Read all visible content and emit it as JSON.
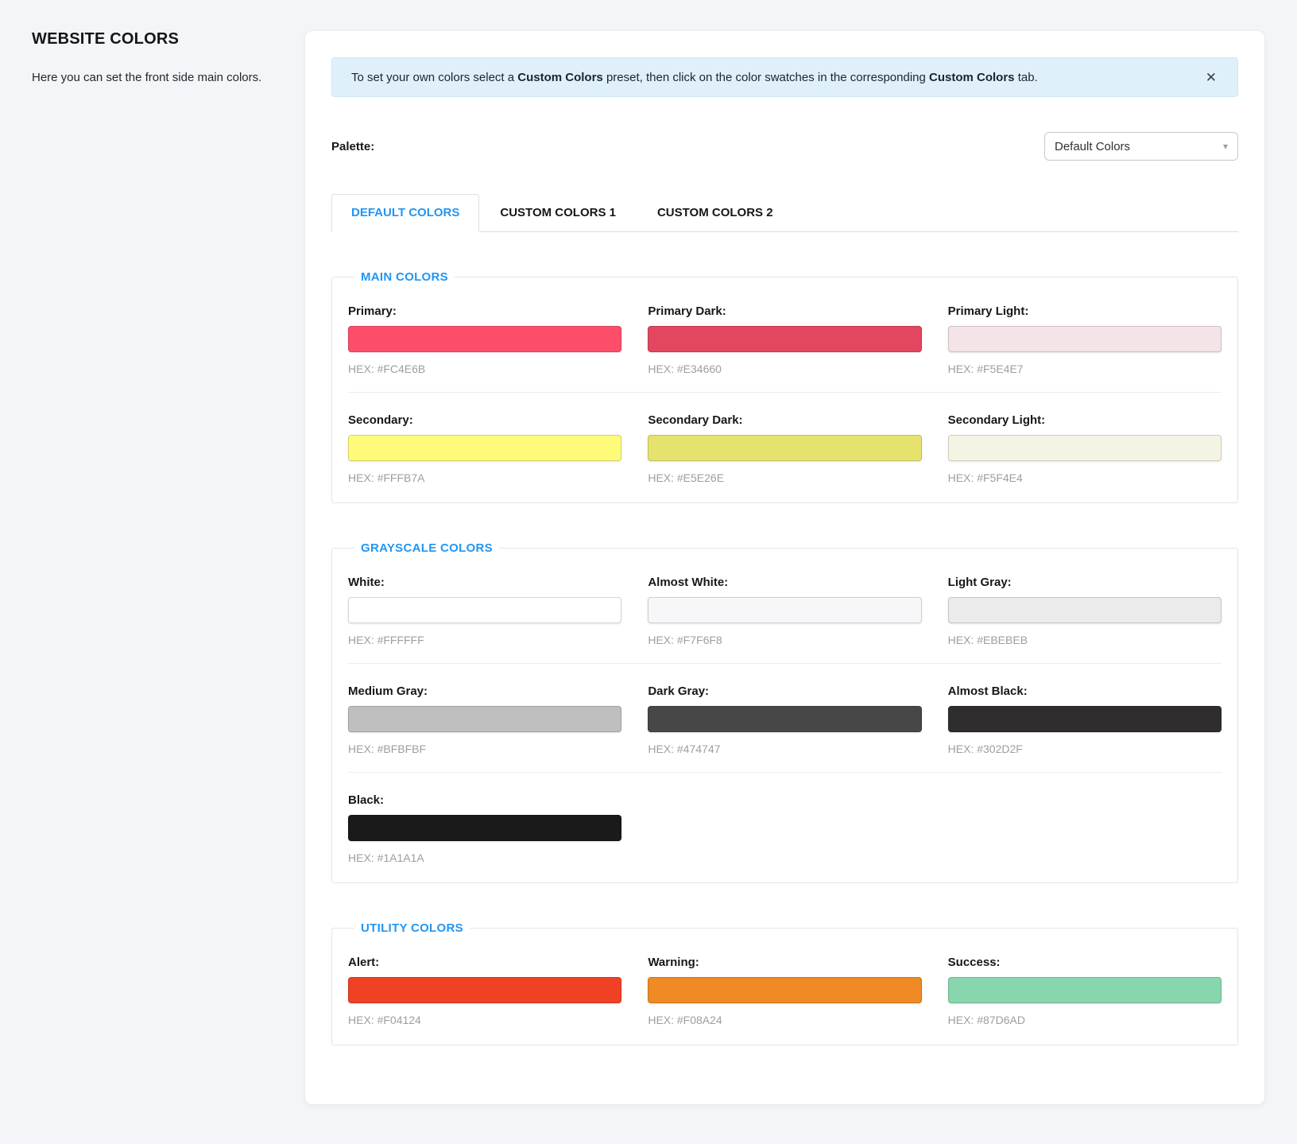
{
  "colors": {
    "accent": "#2196F3",
    "alert_bg": "#DFF0FA",
    "page_bg": "#F4F5F8"
  },
  "sidebar": {
    "title": "WEBSITE COLORS",
    "subtitle": "Here you can set the front side main colors."
  },
  "alert": {
    "part1": "To set your own colors select a ",
    "bold1": "Custom Colors",
    "part2": " preset, then click on the color swatches in the corresponding ",
    "bold2": "Custom Colors",
    "part3": " tab.",
    "close_icon": "✕"
  },
  "palette": {
    "label": "Palette:",
    "selected": "Default Colors",
    "caret": "▾"
  },
  "tabs": [
    {
      "label": "DEFAULT COLORS",
      "active": true
    },
    {
      "label": "CUSTOM COLORS 1",
      "active": false
    },
    {
      "label": "CUSTOM COLORS 2",
      "active": false
    }
  ],
  "sections": [
    {
      "title": "MAIN COLORS",
      "rows": [
        {
          "cells": [
            {
              "label": "Primary:",
              "color": "#FC4E6B",
              "hex_text": "HEX: #FC4E6B"
            },
            {
              "label": "Primary Dark:",
              "color": "#E34660",
              "hex_text": "HEX: #E34660"
            },
            {
              "label": "Primary Light:",
              "color": "#F5E4E7",
              "hex_text": "HEX: #F5E4E7"
            }
          ]
        },
        {
          "cells": [
            {
              "label": "Secondary:",
              "color": "#FFFB7A",
              "hex_text": "HEX: #FFFB7A"
            },
            {
              "label": "Secondary Dark:",
              "color": "#E5E26E",
              "hex_text": "HEX: #E5E26E"
            },
            {
              "label": "Secondary Light:",
              "color": "#F5F4E4",
              "hex_text": "HEX: #F5F4E4"
            }
          ]
        }
      ]
    },
    {
      "title": "GRAYSCALE COLORS",
      "rows": [
        {
          "cells": [
            {
              "label": "White:",
              "color": "#FFFFFF",
              "hex_text": "HEX: #FFFFFF"
            },
            {
              "label": "Almost White:",
              "color": "#F7F6F8",
              "hex_text": "HEX: #F7F6F8"
            },
            {
              "label": "Light Gray:",
              "color": "#EBEBEB",
              "hex_text": "HEX: #EBEBEB"
            }
          ]
        },
        {
          "cells": [
            {
              "label": "Medium Gray:",
              "color": "#BFBFBF",
              "hex_text": "HEX: #BFBFBF"
            },
            {
              "label": "Dark Gray:",
              "color": "#474747",
              "hex_text": "HEX: #474747"
            },
            {
              "label": "Almost Black:",
              "color": "#302D2F",
              "hex_text": "HEX: #302D2F"
            }
          ]
        },
        {
          "cells": [
            {
              "label": "Black:",
              "color": "#1A1A1A",
              "hex_text": "HEX: #1A1A1A"
            }
          ]
        }
      ]
    },
    {
      "title": "UTILITY COLORS",
      "rows": [
        {
          "cells": [
            {
              "label": "Alert:",
              "color": "#F04124",
              "hex_text": "HEX: #F04124"
            },
            {
              "label": "Warning:",
              "color": "#F08A24",
              "hex_text": "HEX: #F08A24"
            },
            {
              "label": "Success:",
              "color": "#87D6AD",
              "hex_text": "HEX: #87D6AD"
            }
          ]
        }
      ]
    }
  ]
}
